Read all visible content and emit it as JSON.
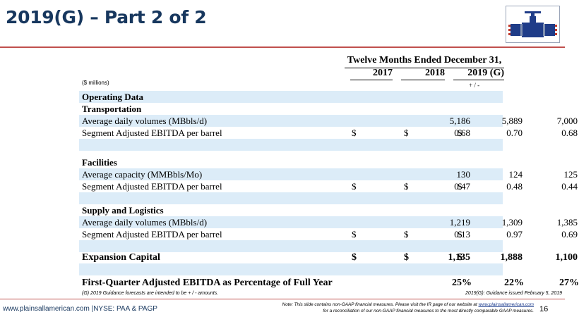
{
  "title": "2019(G) – Part 2 of 2",
  "table": {
    "group_header": "Twelve Months Ended December 31,",
    "years": [
      "2017",
      "2018",
      "2019 (G)"
    ],
    "units": "($ millions)",
    "range_note": "+ / -",
    "operating_data": "Operating Data",
    "transportation": {
      "header": "Transportation",
      "vol_label": "Average daily volumes (MBbls/d)",
      "vol": [
        "5,186",
        "5,889",
        "7,000"
      ],
      "ebitda_label": "Segment Adjusted EBITDA per barrel",
      "ebitda": [
        "0.68",
        "0.70",
        "0.68"
      ]
    },
    "facilities": {
      "header": "Facilities",
      "cap_label": "Average capacity (MMBbls/Mo)",
      "cap": [
        "130",
        "124",
        "125"
      ],
      "ebitda_label": "Segment Adjusted EBITDA per barrel",
      "ebitda": [
        "0.47",
        "0.48",
        "0.44"
      ]
    },
    "supply": {
      "header": "Supply and Logistics",
      "vol_label": "Average daily volumes (MBbls/d)",
      "vol": [
        "1,219",
        "1,309",
        "1,385"
      ],
      "ebitda_label": "Segment Adjusted EBITDA per barrel",
      "ebitda": [
        "0.13",
        "0.97",
        "0.69"
      ]
    },
    "expansion": {
      "label": "Expansion Capital",
      "values": [
        "1,135",
        "1,888",
        "1,100"
      ]
    },
    "first_quarter": {
      "label": "First-Quarter Adjusted EBITDA as Percentage of Full Year",
      "values": [
        "25%",
        "22%",
        "27%"
      ]
    },
    "dollar": "$"
  },
  "footnote_left": "(G)   2019 Guidance forecasts are intended to be + / - amounts.",
  "footnote_right": "2019(G): Guidance issued February 5, 2019",
  "footer": {
    "url": "www.plainsallamerican.com |NYSE: PAA & PAGP",
    "note_prefix": "Note: This slide contains non-GAAP financial measures. Please visit the IR page of our website at ",
    "note_link": "www.plainsallamerican.com",
    "note_line2": "for a reconciliation of our non-GAAP financial measures to the most directly comparable GAAP measures.",
    "page": "16"
  },
  "colors": {
    "title": "#17375e",
    "accent_rule": "#c0504d",
    "band": "#dcecf8",
    "logo_blue": "#1f3c88",
    "logo_red": "#c0392b"
  },
  "logo_icon": "pipeline-valve-logo"
}
